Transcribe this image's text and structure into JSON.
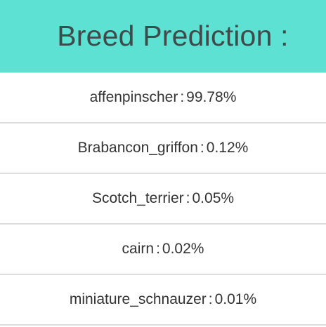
{
  "header": {
    "title": "Breed Prediction :"
  },
  "predictions": [
    {
      "breed": "affenpinscher",
      "separator": ":",
      "score": "99.78%"
    },
    {
      "breed": "Brabancon_griffon",
      "separator": ":",
      "score": "0.12%"
    },
    {
      "breed": "Scotch_terrier",
      "separator": ":",
      "score": "0.05%"
    },
    {
      "breed": "cairn",
      "separator": ":",
      "score": "0.02%"
    },
    {
      "breed": "miniature_schnauzer",
      "separator": ":",
      "score": "0.01%"
    }
  ],
  "colors": {
    "header_background": "#5ce1d3",
    "header_text": "#3f4a4a",
    "row_text": "#333333",
    "divider": "#dddddd"
  }
}
